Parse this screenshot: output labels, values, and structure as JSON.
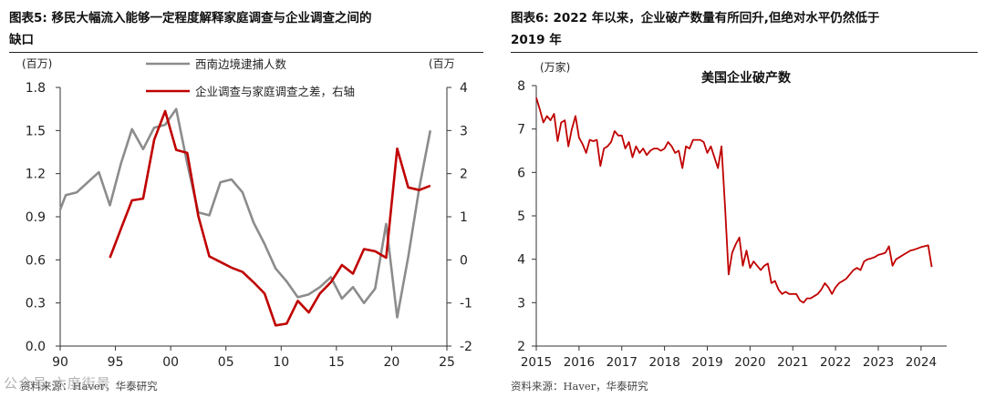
{
  "left": {
    "title_line1": "图表5:   移民大幅流入能够一定程度解释家庭调查与企业调查之间的",
    "title_line2": "缺口",
    "y_left_unit": "(百万)",
    "y_right_unit": "(百万",
    "source": "资料来源：Haver，华泰研究",
    "watermark": "公众号·六度街景"
  },
  "right": {
    "title_line1": "图表6:   2022 年以来，企业破产数量有所回升,但绝对水平仍然低于",
    "title_line2": "2019 年",
    "source": "资料来源：Haver，华泰研究"
  },
  "colors": {
    "grey": "#8c8c8c",
    "red": "#c00000",
    "axis": "#333333"
  },
  "chart_data": [
    {
      "type": "line",
      "title": "",
      "x_tick_labels": [
        "90",
        "95",
        "00",
        "05",
        "10",
        "15",
        "20",
        "25"
      ],
      "x_ticks": [
        1990,
        1995,
        2000,
        2005,
        2010,
        2015,
        2020,
        2025
      ],
      "xlim": [
        1990,
        2025
      ],
      "y_left": {
        "ylim": [
          0,
          1.8
        ],
        "ticks": [
          "0.0",
          "0.3",
          "0.6",
          "0.9",
          "1.2",
          "1.5",
          "1.8"
        ],
        "tick_values": [
          0,
          0.3,
          0.6,
          0.9,
          1.2,
          1.5,
          1.8
        ]
      },
      "y_right": {
        "ylim": [
          -2,
          4
        ],
        "ticks": [
          "-2",
          "-1",
          "0",
          "1",
          "2",
          "3",
          "4"
        ],
        "tick_values": [
          -2,
          -1,
          0,
          1,
          2,
          3,
          4
        ]
      },
      "legend_position": "top",
      "series": [
        {
          "name": "西南边境逮捕人数",
          "axis": "left",
          "color": "#8c8c8c",
          "x": [
            1990,
            1990.5,
            1991.5,
            1992.5,
            1993.5,
            1994.5,
            1995.5,
            1996.5,
            1997.5,
            1998.5,
            1999.5,
            2000.5,
            2001.5,
            2002.5,
            2003.5,
            2004.5,
            2005.5,
            2006.5,
            2007.5,
            2008.5,
            2009.5,
            2010.5,
            2011.5,
            2012.5,
            2013.5,
            2014.5,
            2015.5,
            2016.5,
            2017.5,
            2018.5,
            2019.5,
            2020.5,
            2021.5,
            2022.5,
            2023.5
          ],
          "y": [
            0.95,
            1.05,
            1.07,
            1.14,
            1.21,
            0.98,
            1.27,
            1.51,
            1.37,
            1.52,
            1.54,
            1.65,
            1.27,
            0.93,
            0.91,
            1.14,
            1.16,
            1.07,
            0.86,
            0.71,
            0.54,
            0.45,
            0.34,
            0.36,
            0.41,
            0.48,
            0.33,
            0.41,
            0.3,
            0.4,
            0.85,
            0.2,
            0.62,
            1.1,
            1.5
          ]
        },
        {
          "name": "企业调查与家庭调查之差，右轴",
          "axis": "right",
          "color": "#c00000",
          "x": [
            1994.5,
            1995.5,
            1996.5,
            1997.5,
            1998.5,
            1999.5,
            2000.5,
            2001.5,
            2002.5,
            2003.5,
            2004.5,
            2005.5,
            2006.5,
            2007.5,
            2008.5,
            2009.5,
            2010.5,
            2011.5,
            2012.5,
            2013.5,
            2014.5,
            2015.5,
            2016.5,
            2017.5,
            2018.5,
            2019.5,
            2020.5,
            2021.5,
            2022.5,
            2023.5
          ],
          "y": [
            0.05,
            0.72,
            1.38,
            1.42,
            2.78,
            3.45,
            2.55,
            2.48,
            1.02,
            0.08,
            -0.05,
            -0.18,
            -0.28,
            -0.52,
            -0.78,
            -1.52,
            -1.48,
            -0.95,
            -1.22,
            -0.78,
            -0.52,
            -0.12,
            -0.32,
            0.25,
            0.2,
            0.05,
            2.58,
            1.68,
            1.62,
            1.72
          ]
        }
      ]
    },
    {
      "type": "line",
      "title": "美国企业破产数",
      "ylabel": "(万家)",
      "x_tick_labels": [
        "2015",
        "2016",
        "2017",
        "2018",
        "2019",
        "2020",
        "2021",
        "2022",
        "2023",
        "2024"
      ],
      "x_ticks": [
        2015,
        2016,
        2017,
        2018,
        2019,
        2020,
        2021,
        2022,
        2023,
        2024
      ],
      "xlim": [
        2015,
        2024.6
      ],
      "ylim": [
        2,
        8
      ],
      "y_ticks": [
        "2",
        "3",
        "4",
        "5",
        "6",
        "7",
        "8"
      ],
      "y_tick_values": [
        2,
        3,
        4,
        5,
        6,
        7,
        8
      ],
      "series": [
        {
          "color": "#c00000",
          "x": [
            2015.0,
            2015.083,
            2015.167,
            2015.25,
            2015.333,
            2015.417,
            2015.5,
            2015.583,
            2015.667,
            2015.75,
            2015.833,
            2015.917,
            2016.0,
            2016.083,
            2016.167,
            2016.25,
            2016.333,
            2016.417,
            2016.5,
            2016.583,
            2016.667,
            2016.75,
            2016.833,
            2016.917,
            2017.0,
            2017.083,
            2017.167,
            2017.25,
            2017.333,
            2017.417,
            2017.5,
            2017.583,
            2017.667,
            2017.75,
            2017.833,
            2017.917,
            2018.0,
            2018.083,
            2018.167,
            2018.25,
            2018.333,
            2018.417,
            2018.5,
            2018.583,
            2018.667,
            2018.75,
            2018.833,
            2018.917,
            2019.0,
            2019.083,
            2019.167,
            2019.25,
            2019.333,
            2019.417,
            2019.5,
            2019.583,
            2019.667,
            2019.75,
            2019.833,
            2019.917,
            2020.0,
            2020.083,
            2020.167,
            2020.25,
            2020.333,
            2020.417,
            2020.5,
            2020.583,
            2020.667,
            2020.75,
            2020.833,
            2020.917,
            2021.0,
            2021.083,
            2021.167,
            2021.25,
            2021.333,
            2021.417,
            2021.5,
            2021.583,
            2021.667,
            2021.75,
            2021.833,
            2021.917,
            2022.0,
            2022.083,
            2022.167,
            2022.25,
            2022.333,
            2022.417,
            2022.5,
            2022.583,
            2022.667,
            2022.75,
            2022.833,
            2022.917,
            2023.0,
            2023.083,
            2023.167,
            2023.25,
            2023.333,
            2023.417,
            2023.5,
            2023.583,
            2023.667,
            2023.75,
            2023.833,
            2023.917,
            2024.0,
            2024.083,
            2024.167,
            2024.25
          ],
          "y": [
            7.72,
            7.45,
            7.15,
            7.3,
            7.2,
            7.35,
            6.72,
            7.15,
            7.2,
            6.6,
            7.0,
            7.3,
            6.8,
            6.65,
            6.45,
            6.75,
            6.72,
            6.75,
            6.15,
            6.55,
            6.6,
            6.7,
            6.95,
            6.85,
            6.85,
            6.55,
            6.7,
            6.35,
            6.6,
            6.45,
            6.55,
            6.4,
            6.5,
            6.55,
            6.55,
            6.5,
            6.55,
            6.7,
            6.6,
            6.45,
            6.5,
            6.1,
            6.6,
            6.55,
            6.75,
            6.75,
            6.75,
            6.7,
            6.45,
            6.6,
            6.35,
            6.1,
            6.6,
            5.2,
            3.65,
            4.15,
            4.35,
            4.5,
            3.85,
            4.2,
            3.8,
            3.95,
            3.85,
            3.75,
            3.85,
            3.9,
            3.45,
            3.5,
            3.3,
            3.2,
            3.25,
            3.2,
            3.2,
            3.2,
            3.05,
            3.0,
            3.1,
            3.1,
            3.15,
            3.2,
            3.3,
            3.45,
            3.35,
            3.2,
            3.35,
            3.45,
            3.5,
            3.55,
            3.65,
            3.75,
            3.8,
            3.75,
            3.95,
            4.0,
            4.02,
            4.05,
            4.1,
            4.12,
            4.15,
            4.3,
            3.85,
            4.0,
            4.05,
            4.1,
            4.15,
            4.2,
            4.22,
            4.25,
            4.28,
            4.3,
            4.32,
            3.82
          ]
        }
      ]
    }
  ]
}
